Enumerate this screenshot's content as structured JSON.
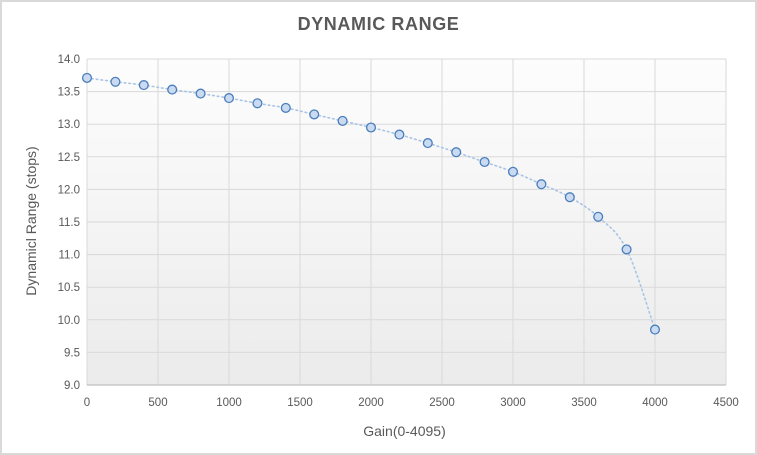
{
  "chart_data": {
    "type": "scatter",
    "title": "DYNAMIC RANGE",
    "xlabel": "Gain(0-4095)",
    "ylabel": "Dynamicl Range (stops)",
    "x": [
      0,
      200,
      400,
      600,
      800,
      1000,
      1200,
      1400,
      1600,
      1800,
      2000,
      2200,
      2400,
      2600,
      2800,
      3000,
      3200,
      3400,
      3600,
      3800,
      4000
    ],
    "y": [
      13.71,
      13.65,
      13.6,
      13.53,
      13.47,
      13.4,
      13.32,
      13.25,
      13.15,
      13.05,
      12.95,
      12.84,
      12.71,
      12.57,
      12.42,
      12.27,
      12.08,
      11.88,
      11.58,
      11.08,
      9.85
    ],
    "xlim": [
      0,
      4500
    ],
    "ylim": [
      9.0,
      14.0
    ],
    "xtick_labels": [
      "0",
      "500",
      "1000",
      "1500",
      "2000",
      "2500",
      "3000",
      "3500",
      "4000",
      "4500"
    ],
    "ytick_labels": [
      "14.0",
      "13.5",
      "13.0",
      "12.5",
      "12.0",
      "11.5",
      "11.0",
      "10.5",
      "10.0",
      "9.5",
      "9.0"
    ],
    "grid": true,
    "legend": false,
    "line_style": "dotted",
    "colors": {
      "marker_fill": "#c9daf1",
      "marker_stroke": "#4a7ebb",
      "line": "#a9c4e4",
      "grid": "#d9d9d9",
      "axis_line": "#bfbfbf",
      "text": "#595959",
      "plot_bg_top": "#fdfdfd",
      "plot_bg_bottom": "#ebebeb"
    }
  }
}
